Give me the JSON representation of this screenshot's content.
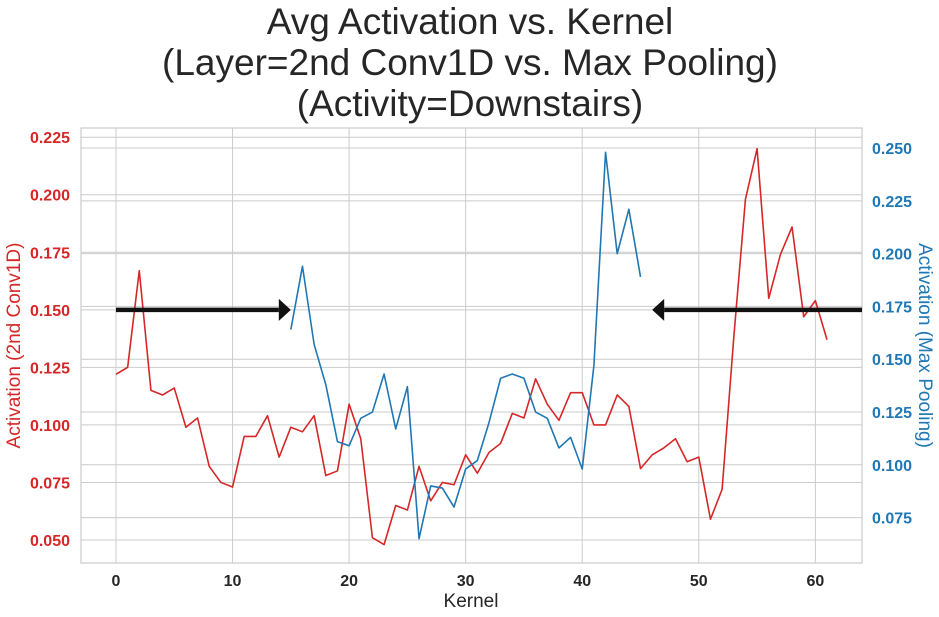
{
  "chart_data": {
    "type": "line",
    "title_lines": [
      "Avg Activation vs. Kernel",
      "(Layer=2nd Conv1D vs. Max Pooling)",
      "(Activity=Downstairs)"
    ],
    "xlabel": "Kernel",
    "ylabel_left": "Activation (2nd Conv1D)",
    "ylabel_right": "Activation (Max Pooling)",
    "xlim": [
      -3,
      64
    ],
    "ylim_left": [
      0.04,
      0.229
    ],
    "ylim_right": [
      0.0535,
      0.2595
    ],
    "x_ticks": [
      0,
      10,
      20,
      30,
      40,
      50,
      60
    ],
    "x_tick_labels": [
      "0",
      "10",
      "20",
      "30",
      "40",
      "50",
      "60"
    ],
    "y_left_ticks": [
      0.05,
      0.075,
      0.1,
      0.125,
      0.15,
      0.175,
      0.2,
      0.225
    ],
    "y_left_tick_labels": [
      "0.050",
      "0.075",
      "0.100",
      "0.125",
      "0.150",
      "0.175",
      "0.200",
      "0.225"
    ],
    "y_right_ticks": [
      0.075,
      0.1,
      0.125,
      0.15,
      0.175,
      0.2,
      0.225,
      0.25
    ],
    "y_right_tick_labels": [
      "0.075",
      "0.100",
      "0.125",
      "0.150",
      "0.175",
      "0.200",
      "0.225",
      "0.250"
    ],
    "grid": true,
    "colors": {
      "left": "#d62728",
      "right": "#1f77b4",
      "arrow": "#111111",
      "grid": "#cccccc"
    },
    "series": [
      {
        "axis": "left",
        "x": [
          0,
          1,
          2,
          3,
          4,
          5,
          6,
          7,
          8,
          9,
          10,
          11,
          12,
          13,
          14,
          15,
          16,
          17,
          18,
          19,
          20,
          21,
          22,
          23,
          24,
          25,
          26,
          27,
          28,
          29,
          30,
          31,
          32,
          33,
          34,
          35,
          36,
          37,
          38,
          39,
          40,
          41,
          42,
          43,
          44,
          45,
          46,
          47,
          48,
          49,
          50,
          51,
          52,
          53,
          54,
          55,
          56,
          57,
          58,
          59,
          60,
          61
        ],
        "values": [
          0.122,
          0.125,
          0.167,
          0.115,
          0.113,
          0.116,
          0.099,
          0.103,
          0.082,
          0.075,
          0.073,
          0.095,
          0.095,
          0.104,
          0.086,
          0.099,
          0.097,
          0.104,
          0.078,
          0.08,
          0.109,
          0.094,
          0.051,
          0.048,
          0.065,
          0.063,
          0.082,
          0.067,
          0.075,
          0.074,
          0.087,
          0.079,
          0.088,
          0.092,
          0.105,
          0.103,
          0.12,
          0.109,
          0.102,
          0.114,
          0.114,
          0.1,
          0.1,
          0.113,
          0.108,
          0.081,
          0.087,
          0.09,
          0.094,
          0.084,
          0.086,
          0.059,
          0.072,
          0.138,
          0.198,
          0.22,
          0.155,
          0.174,
          0.186,
          0.147,
          0.154,
          0.137
        ]
      },
      {
        "axis": "right",
        "x": [
          15,
          16,
          17,
          18,
          19,
          20,
          21,
          22,
          23,
          24,
          25,
          26,
          27,
          28,
          29,
          30,
          31,
          32,
          33,
          34,
          35,
          36,
          37,
          38,
          39,
          40,
          41,
          42,
          43,
          44,
          45
        ],
        "values": [
          0.164,
          0.194,
          0.157,
          0.138,
          0.111,
          0.109,
          0.122,
          0.125,
          0.143,
          0.117,
          0.137,
          0.065,
          0.09,
          0.089,
          0.08,
          0.098,
          0.102,
          0.12,
          0.141,
          0.143,
          0.141,
          0.125,
          0.122,
          0.108,
          0.113,
          0.098,
          0.147,
          0.248,
          0.2,
          0.221,
          0.189
        ]
      }
    ],
    "arrows": [
      {
        "x_start": 0,
        "x_end": 15,
        "y": 0.15,
        "axis": "left",
        "direction": "right"
      },
      {
        "x_start": 64,
        "x_end": 46,
        "y": 0.15,
        "axis": "left",
        "direction": "left"
      }
    ]
  }
}
